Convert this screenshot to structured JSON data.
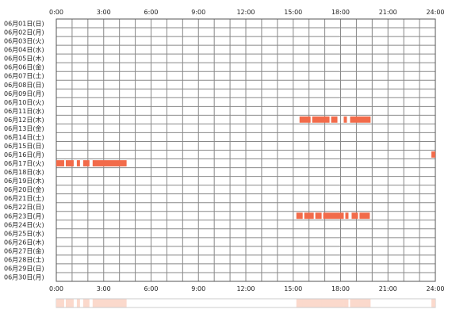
{
  "chart_data": {
    "type": "heatmap",
    "x_ticks": [
      "0:00",
      "3:00",
      "6:00",
      "9:00",
      "12:00",
      "15:00",
      "18:00",
      "21:00",
      "24:00"
    ],
    "x_range_hours": [
      0,
      24
    ],
    "grid": true,
    "days": [
      "06月01日(日)",
      "06月02日(月)",
      "06月03日(火)",
      "06月04日(水)",
      "06月05日(木)",
      "06月06日(金)",
      "06月07日(土)",
      "06月08日(日)",
      "06月09日(月)",
      "06月10日(火)",
      "06月11日(水)",
      "06月12日(木)",
      "06月13日(金)",
      "06月14日(土)",
      "06月15日(日)",
      "06月16日(月)",
      "06月17日(火)",
      "06月18日(水)",
      "06月19日(木)",
      "06月20日(金)",
      "06月21日(土)",
      "06月22日(日)",
      "06月23日(月)",
      "06月24日(火)",
      "06月25日(水)",
      "06月26日(木)",
      "06月27日(金)",
      "06月28日(土)",
      "06月29日(日)",
      "06月30日(月)"
    ],
    "activity": [
      {
        "day_index": 11,
        "intervals_hours": [
          [
            15.4,
            16.1
          ],
          [
            16.2,
            17.3
          ],
          [
            17.4,
            17.8
          ],
          [
            18.2,
            18.4
          ],
          [
            18.6,
            19.9
          ]
        ]
      },
      {
        "day_index": 15,
        "intervals_hours": [
          [
            23.75,
            24.0
          ]
        ]
      },
      {
        "day_index": 16,
        "intervals_hours": [
          [
            0.0,
            0.5
          ],
          [
            0.6,
            1.1
          ],
          [
            1.3,
            1.5
          ],
          [
            1.7,
            2.1
          ],
          [
            2.3,
            4.45
          ]
        ]
      },
      {
        "day_index": 22,
        "intervals_hours": [
          [
            15.2,
            15.6
          ],
          [
            15.7,
            16.3
          ],
          [
            16.4,
            16.8
          ],
          [
            16.9,
            18.2
          ],
          [
            18.3,
            18.5
          ],
          [
            18.7,
            19.1
          ],
          [
            19.2,
            19.85
          ]
        ]
      }
    ],
    "colors": {
      "activity": "#f26b4a",
      "summary": "#fbd9cc",
      "grid": "#888888",
      "frame": "#555555"
    }
  }
}
